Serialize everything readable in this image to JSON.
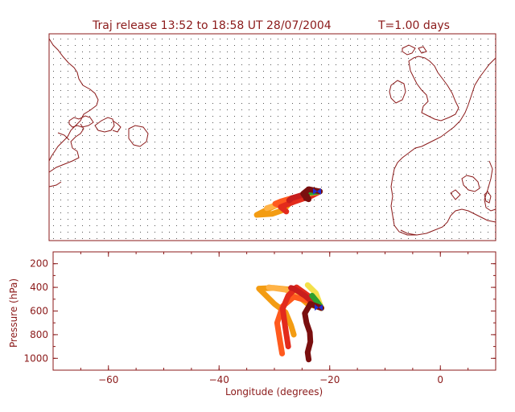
{
  "title": "Traj release 13:52 to 18:58 UT 28/07/2004",
  "time_label": "T=1.00 days",
  "chart_data": [
    {
      "type": "map",
      "name": "trajectory-map",
      "frame_color": "#8b1a1a",
      "coast_color": "#8b1a1a",
      "grid": true,
      "lon_range": [
        -70,
        10
      ],
      "lat_range": [
        28,
        65
      ],
      "release_lon": -22.0,
      "release_lat": 36.8
    },
    {
      "type": "line",
      "name": "pressure-profile",
      "xlabel": "Longitude  (degrees)",
      "ylabel": "Pressure  (hPa)",
      "xlim": [
        -70,
        10
      ],
      "ylim": [
        100,
        1100
      ],
      "y_inverted": true,
      "xticks": [
        -60,
        -40,
        -20,
        0
      ],
      "xtick_labels": [
        "−60",
        "−40",
        "−20",
        "0"
      ],
      "yticks": [
        200,
        400,
        600,
        800,
        1000
      ],
      "ytick_labels": [
        "200",
        "400",
        "600",
        "800",
        "1000"
      ],
      "release_marker": {
        "lon": -22.0,
        "pressure": 570,
        "color": "#1f2fd6"
      },
      "series": [
        {
          "color": "#f39c12",
          "lon": [
            -21.5,
            -24,
            -27,
            -30,
            -32.8,
            -30,
            -28,
            -27,
            -26.5
          ],
          "pressure": [
            575,
            540,
            420,
            405,
            410,
            540,
            610,
            720,
            800
          ]
        },
        {
          "color": "#ffb347",
          "lon": [
            -21.5,
            -23,
            -25.5,
            -28,
            -31
          ],
          "pressure": [
            575,
            520,
            470,
            420,
            400
          ]
        },
        {
          "color": "#ff5a1e",
          "lon": [
            -21.5,
            -23.5,
            -26.5,
            -28.5,
            -29.5,
            -29,
            -28.6
          ],
          "pressure": [
            575,
            520,
            480,
            560,
            700,
            850,
            960
          ]
        },
        {
          "color": "#e32b1c",
          "lon": [
            -21.5,
            -23,
            -26,
            -27.5,
            -28.5,
            -28,
            -27.5
          ],
          "pressure": [
            575,
            500,
            400,
            470,
            580,
            750,
            900
          ]
        },
        {
          "color": "#c81d1d",
          "lon": [
            -21.5,
            -23,
            -24.5,
            -26.5,
            -27
          ],
          "pressure": [
            575,
            530,
            470,
            410,
            405
          ]
        },
        {
          "color": "#f3e04a",
          "lon": [
            -21.5,
            -22.5,
            -24
          ],
          "pressure": [
            575,
            450,
            380
          ]
        },
        {
          "color": "#2e9e2e",
          "lon": [
            -21.5,
            -22.3,
            -23.2
          ],
          "pressure": [
            575,
            520,
            470
          ]
        },
        {
          "color": "#7a0f0f",
          "lon": [
            -21.5,
            -23.5,
            -24.5,
            -24.2,
            -23.6,
            -23.5,
            -24,
            -23.8
          ],
          "pressure": [
            575,
            540,
            620,
            700,
            780,
            860,
            950,
            1010
          ]
        }
      ]
    }
  ]
}
